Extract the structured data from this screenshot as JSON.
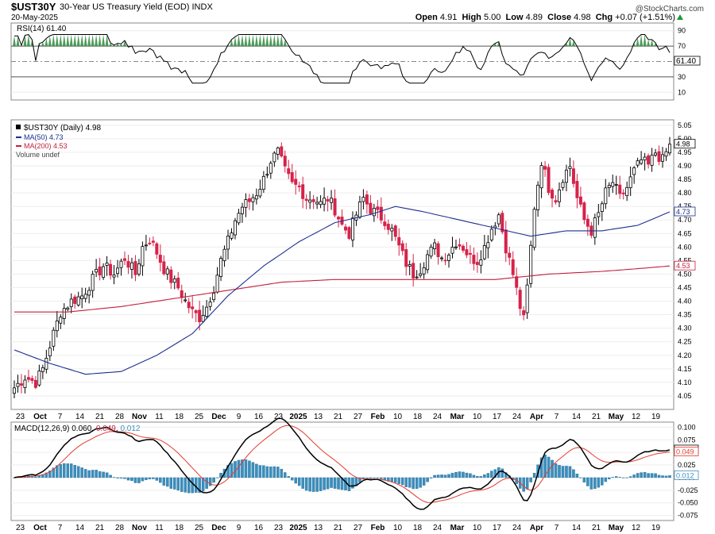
{
  "header": {
    "symbol": "$UST30Y",
    "title": "30-Year US Treasury Yield (EOD)",
    "exchange": "INDX",
    "date": "20-May-2025",
    "brand": "@StockCharts.com",
    "open_label": "Open",
    "open": "4.91",
    "high_label": "High",
    "high": "5.00",
    "low_label": "Low",
    "low": "4.89",
    "close_label": "Close",
    "close": "4.98",
    "chg_label": "Chg",
    "chg": "+0.07 (+1.51%)"
  },
  "colors": {
    "up": "#000000",
    "down": "#d6234a",
    "ma50": "#1d2f8e",
    "ma200": "#c1213d",
    "macd": "#000000",
    "signal": "#e33b2f",
    "hist": "#3a8fbf",
    "rsi": "#000000",
    "rsi_fill": "#2f8a3d"
  },
  "legends": {
    "rsi": "RSI(14) 61.40",
    "price": "$UST30Y (Daily) 4.98",
    "ma50": "MA(50) 4.73",
    "ma200": "MA(200) 4.53",
    "volume": "Volume undef",
    "macd_prefix": "MACD(12,26,9)",
    "macd_val": "0.060",
    "signal_val": "0.049",
    "hist_val": "0.012"
  },
  "tags": {
    "rsi": "61.40",
    "close": "4.98",
    "ma50": "4.73",
    "ma200": "4.53",
    "macd": "0.060",
    "signal": "0.049",
    "hist": "0.012"
  },
  "chart_data": {
    "type": "line",
    "x_labels": [
      "23",
      "Oct",
      "7",
      "14",
      "21",
      "28",
      "Nov",
      "11",
      "18",
      "25",
      "Dec",
      "9",
      "16",
      "23",
      "2025",
      "13",
      "21",
      "27",
      "Feb",
      "10",
      "18",
      "24",
      "Mar",
      "10",
      "17",
      "24",
      "Apr",
      "7",
      "14",
      "21",
      "May",
      "12",
      "19"
    ],
    "price_axis": {
      "ticks": [
        "5.05",
        "5.00",
        "4.95",
        "4.90",
        "4.85",
        "4.80",
        "4.75",
        "4.70",
        "4.65",
        "4.60",
        "4.55",
        "4.50",
        "4.45",
        "4.40",
        "4.35",
        "4.30",
        "4.25",
        "4.20",
        "4.15",
        "4.10",
        "4.05"
      ],
      "range": [
        4.0,
        5.07
      ]
    },
    "rsi_axis": {
      "ticks": [
        "90",
        "70",
        "50",
        "30",
        "10"
      ],
      "range": [
        0,
        100
      ]
    },
    "macd_axis": {
      "ticks": [
        "0.100",
        "0.075",
        "0.050",
        "0.025",
        "0.000",
        "-0.025",
        "-0.050",
        "-0.075"
      ],
      "range": [
        -0.085,
        0.11
      ]
    },
    "close_anchors": [
      [
        0,
        4.08
      ],
      [
        3,
        4.12
      ],
      [
        6,
        4.1
      ],
      [
        8,
        4.15
      ],
      [
        11,
        4.28
      ],
      [
        13,
        4.36
      ],
      [
        16,
        4.4
      ],
      [
        19,
        4.42
      ],
      [
        22,
        4.48
      ],
      [
        25,
        4.53
      ],
      [
        28,
        4.5
      ],
      [
        31,
        4.56
      ],
      [
        34,
        4.5
      ],
      [
        36,
        4.6
      ],
      [
        38,
        4.63
      ],
      [
        40,
        4.58
      ],
      [
        42,
        4.52
      ],
      [
        44,
        4.48
      ],
      [
        46,
        4.45
      ],
      [
        48,
        4.4
      ],
      [
        50,
        4.36
      ],
      [
        52,
        4.34
      ],
      [
        54,
        4.38
      ],
      [
        56,
        4.45
      ],
      [
        58,
        4.55
      ],
      [
        60,
        4.62
      ],
      [
        62,
        4.7
      ],
      [
        64,
        4.75
      ],
      [
        66,
        4.77
      ],
      [
        68,
        4.8
      ],
      [
        70,
        4.85
      ],
      [
        72,
        4.92
      ],
      [
        74,
        4.95
      ],
      [
        76,
        4.88
      ],
      [
        78,
        4.83
      ],
      [
        80,
        4.82
      ],
      [
        82,
        4.78
      ],
      [
        84,
        4.78
      ],
      [
        86,
        4.76
      ],
      [
        88,
        4.78
      ],
      [
        90,
        4.74
      ],
      [
        92,
        4.68
      ],
      [
        94,
        4.65
      ],
      [
        96,
        4.72
      ],
      [
        98,
        4.78
      ],
      [
        100,
        4.74
      ],
      [
        102,
        4.72
      ],
      [
        104,
        4.7
      ],
      [
        106,
        4.66
      ],
      [
        108,
        4.6
      ],
      [
        110,
        4.54
      ],
      [
        112,
        4.5
      ],
      [
        114,
        4.52
      ],
      [
        116,
        4.57
      ],
      [
        118,
        4.6
      ],
      [
        120,
        4.56
      ],
      [
        122,
        4.58
      ],
      [
        124,
        4.62
      ],
      [
        126,
        4.6
      ],
      [
        128,
        4.56
      ],
      [
        130,
        4.55
      ],
      [
        132,
        4.6
      ],
      [
        134,
        4.67
      ],
      [
        136,
        4.72
      ],
      [
        138,
        4.6
      ],
      [
        140,
        4.5
      ],
      [
        142,
        4.38
      ],
      [
        143,
        4.33
      ],
      [
        144,
        4.45
      ],
      [
        146,
        4.75
      ],
      [
        148,
        4.92
      ],
      [
        150,
        4.82
      ],
      [
        152,
        4.78
      ],
      [
        154,
        4.86
      ],
      [
        156,
        4.9
      ],
      [
        158,
        4.78
      ],
      [
        160,
        4.7
      ],
      [
        162,
        4.66
      ],
      [
        164,
        4.72
      ],
      [
        166,
        4.8
      ],
      [
        168,
        4.84
      ],
      [
        170,
        4.78
      ],
      [
        172,
        4.82
      ],
      [
        174,
        4.88
      ],
      [
        176,
        4.92
      ],
      [
        178,
        4.9
      ],
      [
        180,
        4.95
      ],
      [
        182,
        4.92
      ],
      [
        184,
        4.98
      ]
    ],
    "ma50_anchors": [
      [
        0,
        4.22
      ],
      [
        10,
        4.17
      ],
      [
        20,
        4.13
      ],
      [
        30,
        4.14
      ],
      [
        40,
        4.2
      ],
      [
        50,
        4.28
      ],
      [
        60,
        4.42
      ],
      [
        70,
        4.53
      ],
      [
        80,
        4.62
      ],
      [
        90,
        4.69
      ],
      [
        100,
        4.72
      ],
      [
        107,
        4.75
      ],
      [
        115,
        4.73
      ],
      [
        125,
        4.7
      ],
      [
        135,
        4.67
      ],
      [
        145,
        4.64
      ],
      [
        155,
        4.66
      ],
      [
        165,
        4.66
      ],
      [
        175,
        4.68
      ],
      [
        184,
        4.73
      ]
    ],
    "ma200_anchors": [
      [
        0,
        4.36
      ],
      [
        15,
        4.36
      ],
      [
        30,
        4.38
      ],
      [
        45,
        4.41
      ],
      [
        60,
        4.44
      ],
      [
        75,
        4.47
      ],
      [
        90,
        4.48
      ],
      [
        105,
        4.48
      ],
      [
        120,
        4.48
      ],
      [
        135,
        4.48
      ],
      [
        150,
        4.5
      ],
      [
        165,
        4.51
      ],
      [
        175,
        4.52
      ],
      [
        184,
        4.53
      ]
    ]
  }
}
